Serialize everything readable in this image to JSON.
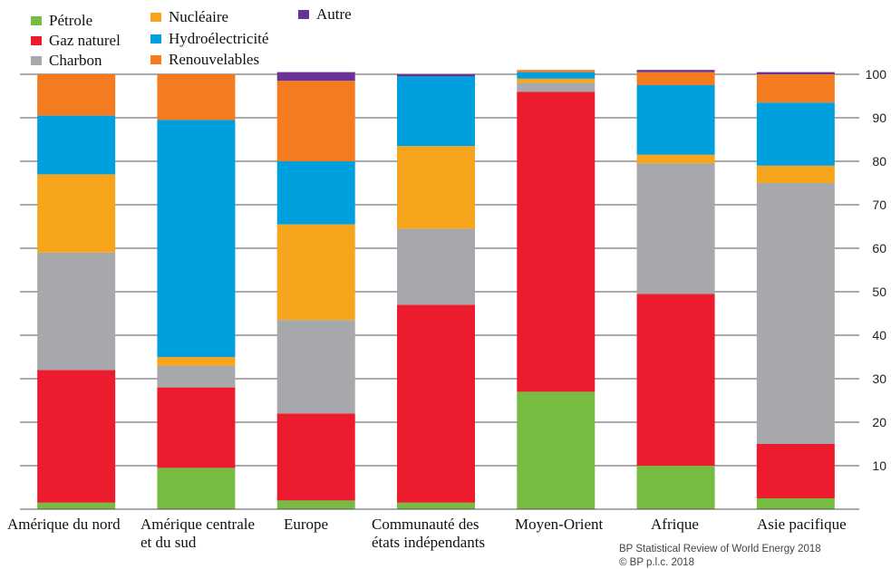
{
  "chart_data": {
    "type": "bar",
    "stacked": true,
    "categories": [
      [
        "Amérique du nord"
      ],
      [
        "Amérique centrale",
        "et du sud"
      ],
      [
        "Europe"
      ],
      [
        "Communauté des",
        "états indépendants"
      ],
      [
        "Moyen-Orient"
      ],
      [
        "Afrique"
      ],
      [
        "Asie pacifique"
      ]
    ],
    "series": [
      {
        "name": "Pétrole",
        "color": "#76BC43",
        "values": [
          1.5,
          9.5,
          2,
          1.5,
          27,
          10,
          2.5
        ]
      },
      {
        "name": "Gaz naturel",
        "color": "#EC1C2E",
        "values": [
          30.5,
          18.5,
          20,
          45.5,
          69,
          39.5,
          12.5
        ]
      },
      {
        "name": "Charbon",
        "color": "#A6A8AB",
        "values": [
          27,
          5,
          21.5,
          17.5,
          2,
          30,
          60
        ]
      },
      {
        "name": "Nucléaire",
        "color": "#F7A51C",
        "values": [
          18,
          2,
          22,
          19,
          1,
          2,
          4
        ]
      },
      {
        "name": "Hydroélectricité",
        "color": "#00A0DF",
        "values": [
          13.5,
          54.5,
          14.5,
          16,
          1.5,
          16,
          14.5
        ]
      },
      {
        "name": "Renouvelables",
        "color": "#F47B20",
        "values": [
          9.5,
          10.5,
          18.5,
          0,
          0.5,
          3,
          6.5
        ]
      },
      {
        "name": "Autre",
        "color": "#6A3296",
        "values": [
          0,
          0,
          2,
          0.5,
          0,
          0.5,
          0.5
        ]
      }
    ],
    "ylim": [
      0,
      100
    ],
    "yticks": [
      "10",
      "20",
      "30",
      "40",
      "50",
      "60",
      "70",
      "80",
      "90",
      "100"
    ],
    "ytick_values": [
      10,
      20,
      30,
      40,
      50,
      60,
      70,
      80,
      90,
      100
    ],
    "grid": true,
    "legend_position": "top-left",
    "y_axis_position": "right"
  },
  "source": {
    "line1": "BP Statistical Review of World Energy 2018",
    "line2": "© BP p.l.c. 2018"
  }
}
